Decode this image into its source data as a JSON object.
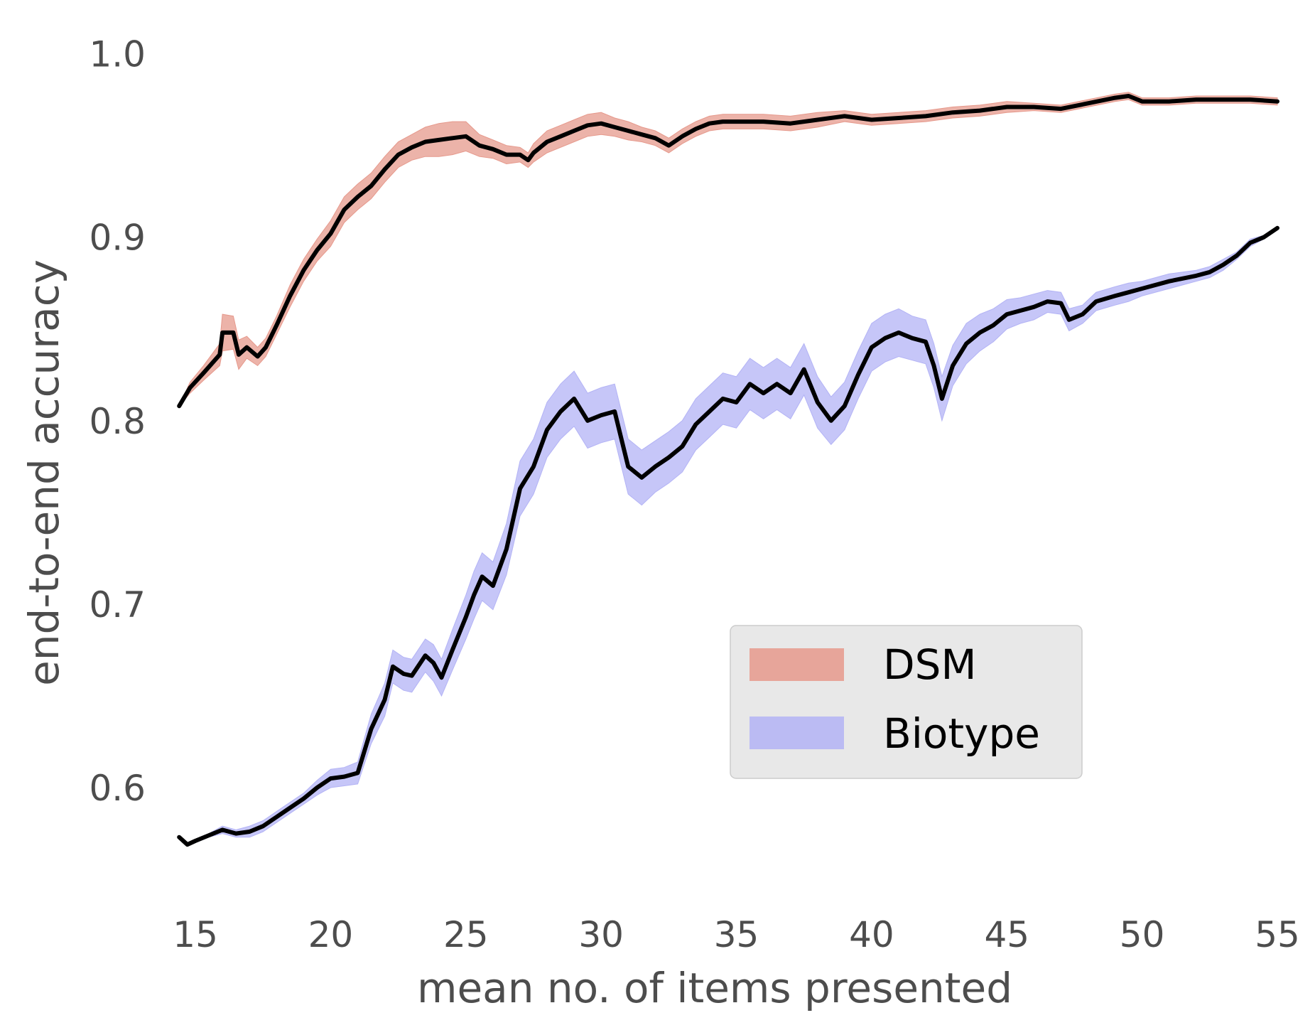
{
  "chart_data": {
    "type": "line",
    "xlabel": "mean no. of items presented",
    "ylabel": "end-to-end accuracy",
    "xlim": [
      14,
      55
    ],
    "ylim": [
      0.545,
      1.02
    ],
    "xticks": [
      15,
      20,
      25,
      30,
      35,
      40,
      45,
      50,
      55
    ],
    "yticks": [
      0.6,
      0.7,
      0.8,
      0.9,
      1.0
    ],
    "xtick_labels": [
      "15",
      "20",
      "25",
      "30",
      "35",
      "40",
      "45",
      "50",
      "55"
    ],
    "ytick_labels": [
      "0.6",
      "0.7",
      "0.8",
      "0.9",
      "1.0"
    ],
    "grid": false,
    "legend_position": "lower-right",
    "series": [
      {
        "name": "DSM",
        "band_color": "#e6998c",
        "line_color": "#000000",
        "x": [
          14.4,
          14.8,
          15.3,
          15.9,
          16.0,
          16.4,
          16.6,
          16.9,
          17.3,
          17.6,
          18.0,
          18.5,
          19.0,
          19.5,
          20.0,
          20.5,
          21.0,
          21.5,
          22.0,
          22.5,
          23.0,
          23.5,
          24.0,
          24.5,
          25.0,
          25.5,
          26.0,
          26.5,
          27.0,
          27.3,
          27.5,
          28.0,
          28.5,
          29.0,
          29.5,
          30.0,
          30.5,
          31.0,
          31.5,
          32.0,
          32.5,
          33.0,
          33.5,
          34.0,
          34.5,
          35.0,
          36.0,
          37.0,
          38.0,
          39.0,
          40.0,
          41.0,
          42.0,
          43.0,
          44.0,
          45.0,
          46.0,
          47.0,
          48.0,
          49.0,
          49.5,
          50.0,
          51.0,
          52.0,
          53.0,
          54.0,
          55.0
        ],
        "y": [
          0.808,
          0.818,
          0.826,
          0.836,
          0.848,
          0.848,
          0.836,
          0.84,
          0.835,
          0.84,
          0.852,
          0.868,
          0.882,
          0.893,
          0.902,
          0.915,
          0.922,
          0.928,
          0.937,
          0.945,
          0.949,
          0.952,
          0.953,
          0.954,
          0.955,
          0.95,
          0.948,
          0.945,
          0.945,
          0.942,
          0.946,
          0.952,
          0.955,
          0.958,
          0.961,
          0.962,
          0.96,
          0.958,
          0.956,
          0.954,
          0.95,
          0.955,
          0.959,
          0.962,
          0.963,
          0.963,
          0.963,
          0.962,
          0.964,
          0.966,
          0.964,
          0.965,
          0.966,
          0.968,
          0.969,
          0.971,
          0.971,
          0.97,
          0.973,
          0.976,
          0.977,
          0.974,
          0.974,
          0.975,
          0.975,
          0.975,
          0.974
        ],
        "band_halfwidth": [
          0.0,
          0.003,
          0.004,
          0.006,
          0.01,
          0.009,
          0.008,
          0.006,
          0.005,
          0.005,
          0.005,
          0.006,
          0.006,
          0.006,
          0.007,
          0.007,
          0.007,
          0.007,
          0.007,
          0.007,
          0.007,
          0.008,
          0.009,
          0.009,
          0.008,
          0.006,
          0.005,
          0.005,
          0.004,
          0.004,
          0.005,
          0.006,
          0.006,
          0.006,
          0.006,
          0.006,
          0.005,
          0.005,
          0.004,
          0.004,
          0.004,
          0.004,
          0.004,
          0.004,
          0.004,
          0.004,
          0.004,
          0.004,
          0.004,
          0.003,
          0.003,
          0.003,
          0.003,
          0.003,
          0.003,
          0.003,
          0.002,
          0.002,
          0.002,
          0.002,
          0.002,
          0.002,
          0.002,
          0.002,
          0.002,
          0.002,
          0.002
        ]
      },
      {
        "name": "Biotype",
        "band_color": "#b3b3f5",
        "line_color": "#000000",
        "x": [
          14.4,
          14.7,
          15.0,
          15.5,
          16.0,
          16.5,
          17.0,
          17.5,
          18.0,
          18.5,
          19.0,
          19.5,
          20.0,
          20.5,
          21.0,
          21.5,
          22.0,
          22.3,
          22.7,
          23.0,
          23.5,
          23.8,
          24.1,
          24.5,
          25.0,
          25.3,
          25.6,
          26.0,
          26.5,
          27.0,
          27.5,
          28.0,
          28.5,
          29.0,
          29.5,
          30.0,
          30.5,
          31.0,
          31.5,
          32.0,
          32.5,
          33.0,
          33.5,
          34.0,
          34.5,
          35.0,
          35.5,
          36.0,
          36.5,
          37.0,
          37.5,
          38.0,
          38.5,
          39.0,
          39.5,
          40.0,
          40.5,
          41.0,
          41.5,
          42.0,
          42.3,
          42.6,
          43.0,
          43.5,
          44.0,
          44.5,
          45.0,
          45.5,
          46.0,
          46.5,
          47.0,
          47.3,
          47.8,
          48.3,
          49.0,
          49.5,
          50.0,
          51.0,
          52.0,
          52.5,
          53.0,
          53.5,
          54.0,
          54.5,
          55.0
        ],
        "y": [
          0.573,
          0.569,
          0.571,
          0.574,
          0.577,
          0.575,
          0.576,
          0.579,
          0.584,
          0.589,
          0.594,
          0.6,
          0.605,
          0.606,
          0.608,
          0.632,
          0.648,
          0.666,
          0.662,
          0.661,
          0.672,
          0.668,
          0.66,
          0.675,
          0.693,
          0.705,
          0.715,
          0.71,
          0.73,
          0.763,
          0.775,
          0.795,
          0.805,
          0.812,
          0.8,
          0.803,
          0.805,
          0.775,
          0.769,
          0.775,
          0.78,
          0.786,
          0.798,
          0.805,
          0.812,
          0.81,
          0.82,
          0.815,
          0.82,
          0.815,
          0.828,
          0.81,
          0.8,
          0.808,
          0.825,
          0.84,
          0.845,
          0.848,
          0.845,
          0.843,
          0.83,
          0.812,
          0.83,
          0.842,
          0.848,
          0.852,
          0.858,
          0.86,
          0.862,
          0.865,
          0.864,
          0.855,
          0.858,
          0.865,
          0.868,
          0.87,
          0.872,
          0.876,
          0.879,
          0.881,
          0.885,
          0.89,
          0.897,
          0.9,
          0.905
        ],
        "band_halfwidth": [
          0.0,
          0.001,
          0.001,
          0.001,
          0.002,
          0.002,
          0.003,
          0.003,
          0.003,
          0.003,
          0.003,
          0.004,
          0.005,
          0.005,
          0.006,
          0.008,
          0.009,
          0.009,
          0.009,
          0.009,
          0.009,
          0.01,
          0.01,
          0.011,
          0.012,
          0.013,
          0.013,
          0.013,
          0.014,
          0.015,
          0.015,
          0.015,
          0.015,
          0.015,
          0.015,
          0.015,
          0.015,
          0.015,
          0.015,
          0.014,
          0.014,
          0.014,
          0.014,
          0.014,
          0.014,
          0.014,
          0.014,
          0.014,
          0.014,
          0.014,
          0.014,
          0.014,
          0.013,
          0.013,
          0.013,
          0.013,
          0.013,
          0.013,
          0.012,
          0.012,
          0.012,
          0.012,
          0.011,
          0.011,
          0.01,
          0.009,
          0.008,
          0.007,
          0.007,
          0.006,
          0.006,
          0.006,
          0.005,
          0.005,
          0.005,
          0.005,
          0.004,
          0.004,
          0.003,
          0.003,
          0.003,
          0.002,
          0.002,
          0.001,
          0.0
        ]
      }
    ]
  }
}
